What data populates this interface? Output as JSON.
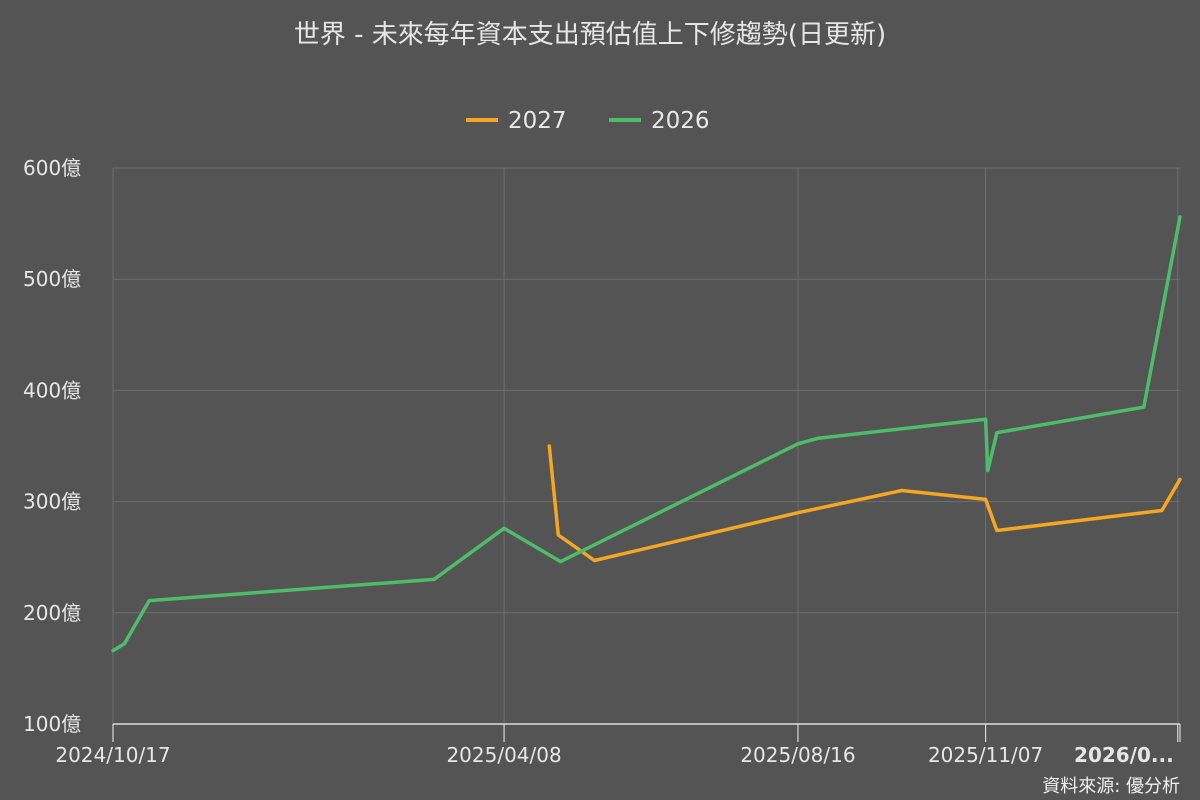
{
  "chart_data": {
    "type": "line",
    "title": "世界 - 未來每年資本支出預估值上下修趨勢(日更新)",
    "source": "資料來源: 優分析",
    "legend_position": "top-center",
    "grid": true,
    "y_tick_labels": [
      "600億",
      "500億",
      "400億",
      "300億",
      "200億",
      "100億"
    ],
    "y_ticks": [
      600,
      500,
      400,
      300,
      200,
      100
    ],
    "ylim": [
      100,
      600
    ],
    "x_tick_labels": [
      "2024/10/17",
      "2025/04/08",
      "2025/08/16",
      "2025/11/07",
      "2026/0..."
    ],
    "x_ticks": [
      "2024-10-17",
      "2025-04-08",
      "2025-08-16",
      "2025-11-07",
      "2026-01-31"
    ],
    "xlim": [
      "2024-10-17",
      "2026-02-01"
    ],
    "series": [
      {
        "name": "2027",
        "color": "#f5a623",
        "points": [
          [
            "2025-04-28",
            350
          ],
          [
            "2025-05-02",
            270
          ],
          [
            "2025-05-18",
            247
          ],
          [
            "2025-08-16",
            290
          ],
          [
            "2025-10-01",
            310
          ],
          [
            "2025-11-07",
            302
          ],
          [
            "2025-11-12",
            274
          ],
          [
            "2026-01-24",
            292
          ],
          [
            "2026-02-01",
            320
          ]
        ]
      },
      {
        "name": "2026",
        "color": "#4dbd6a",
        "points": [
          [
            "2024-10-17",
            166
          ],
          [
            "2024-10-22",
            172
          ],
          [
            "2024-11-02",
            211
          ],
          [
            "2025-03-08",
            230
          ],
          [
            "2025-04-08",
            276
          ],
          [
            "2025-05-03",
            246
          ],
          [
            "2025-08-16",
            352
          ],
          [
            "2025-08-25",
            357
          ],
          [
            "2025-11-07",
            374
          ],
          [
            "2025-11-08",
            328
          ],
          [
            "2025-11-12",
            362
          ],
          [
            "2026-01-16",
            385
          ],
          [
            "2026-02-01",
            556
          ]
        ]
      }
    ]
  }
}
